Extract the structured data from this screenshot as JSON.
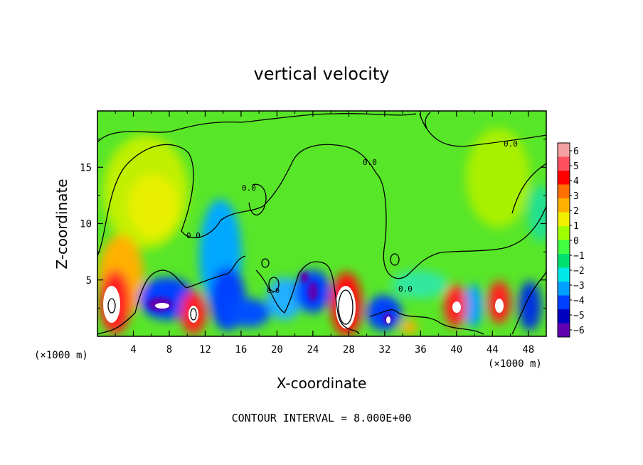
{
  "chart_data": {
    "type": "heatmap",
    "title": "vertical velocity",
    "xlabel": "X-coordinate",
    "ylabel": "Z-coordinate",
    "x_unit_left": "(×1000 m)",
    "x_unit_right": "(×1000 m)",
    "footer": "CONTOUR INTERVAL = 8.000E+00",
    "xlim": [
      0,
      50
    ],
    "ylim": [
      0,
      20
    ],
    "x_ticks": [
      "4",
      "8",
      "12",
      "16",
      "20",
      "24",
      "28",
      "32",
      "36",
      "40",
      "44",
      "48"
    ],
    "y_ticks": [
      "5",
      "10",
      "15"
    ],
    "colorbar": {
      "labels": [
        "6",
        "5",
        "4",
        "3",
        "2",
        "1",
        "0",
        "−1",
        "−2",
        "−3",
        "−4",
        "−5",
        "−6"
      ],
      "colors": [
        "#f4a0a0",
        "#ff5060",
        "#ff0000",
        "#ff7000",
        "#ffb000",
        "#f0f000",
        "#a0ff00",
        "#40ff40",
        "#00e070",
        "#00e8e8",
        "#00a0ff",
        "#0040ff",
        "#0000c0",
        "#6000b0"
      ]
    },
    "contour_label": "0.0"
  }
}
